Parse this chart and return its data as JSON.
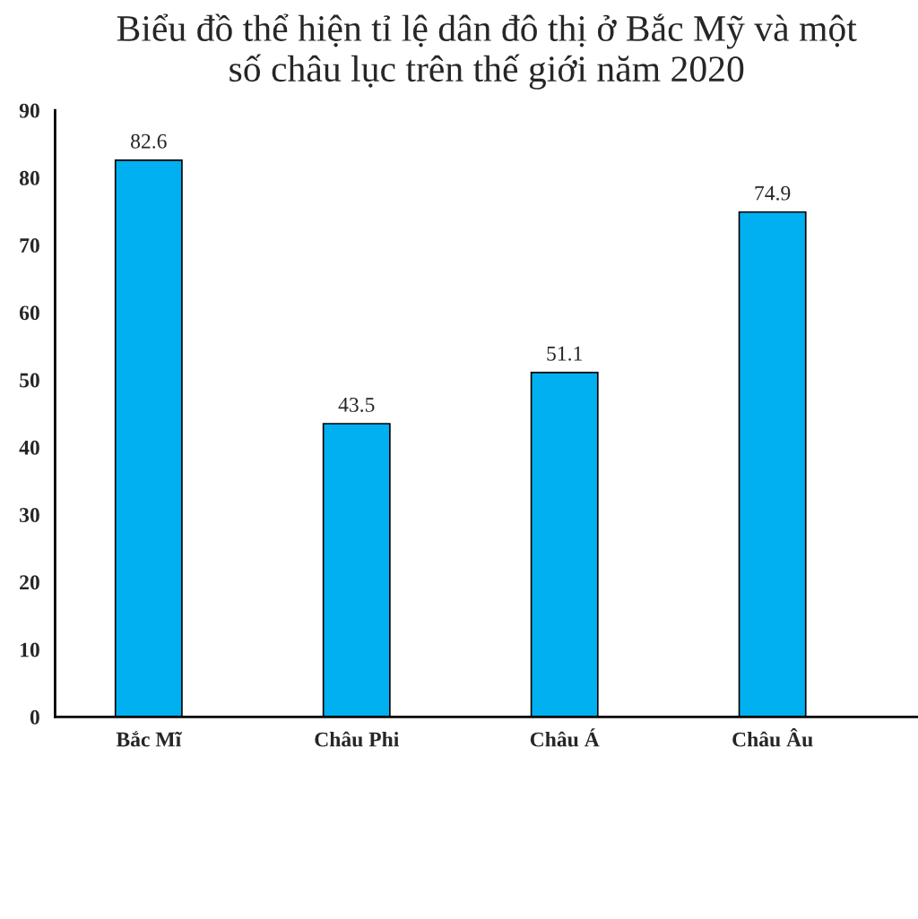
{
  "chart_data": {
    "type": "bar",
    "title": "Biểu đồ thể hiện tỉ lệ dân đô thị ở Bắc Mỹ và một\nsố châu lục trên thế giới năm 2020",
    "categories": [
      "Bắc Mĩ",
      "Châu Phi",
      "Châu Á",
      "Châu Âu"
    ],
    "values": [
      82.6,
      43.5,
      51.1,
      74.9
    ],
    "color": "#00b0f0",
    "ylim": [
      0,
      90
    ],
    "yticks": [
      0,
      10,
      20,
      30,
      40,
      50,
      60,
      70,
      80,
      90
    ],
    "data_labels": true,
    "grid": false
  }
}
